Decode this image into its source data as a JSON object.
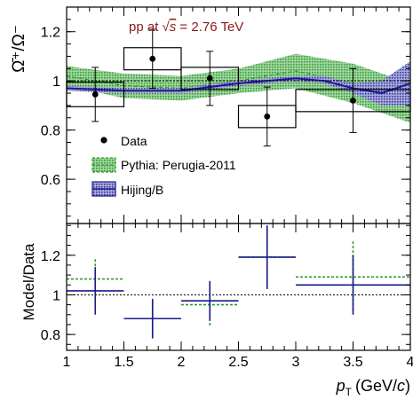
{
  "chart_data": [
    {
      "type": "scatter",
      "annotation": "pp at √s = 2.76 TeV",
      "annotation_prefix": "pp at ",
      "annotation_sqrt": "√",
      "annotation_s": "s",
      "annotation_suffix": " = 2.76 TeV",
      "ylabel": "Ω̄⁺/Ω⁻",
      "ylim": [
        0.42,
        1.3
      ],
      "xlim": [
        1,
        4
      ],
      "yticks": [
        "0.6",
        "0.8",
        "1",
        "1.2"
      ],
      "yticks_values": [
        0.6,
        0.8,
        1.0,
        1.2
      ],
      "reference_line": 1.0,
      "legend": [
        {
          "label": "Data",
          "kind": "marker"
        },
        {
          "label": "Pythia: Perugia-2011",
          "kind": "band",
          "color": "#2e9a2e"
        },
        {
          "label": "Hijing/B",
          "kind": "band",
          "color": "#1a1a8c"
        }
      ],
      "data": {
        "name": "Data",
        "x": [
          1.25,
          1.75,
          2.25,
          2.75,
          3.5
        ],
        "x_bins": [
          [
            1,
            1.5
          ],
          [
            1.5,
            2
          ],
          [
            2,
            2.5
          ],
          [
            2.5,
            3
          ],
          [
            3,
            4
          ]
        ],
        "y": [
          0.945,
          1.09,
          1.01,
          0.855,
          0.92
        ],
        "stat_err": [
          0.11,
          0.12,
          0.11,
          0.12,
          0.13
        ],
        "syst_err": [
          0.05,
          0.045,
          0.045,
          0.045,
          0.045
        ]
      },
      "pythia": {
        "name": "Pythia: Perugia-2011",
        "x": [
          1,
          1.5,
          2,
          2.5,
          3,
          3.5,
          4
        ],
        "y": [
          1.02,
          0.98,
          0.97,
          1.0,
          1.04,
          0.99,
          0.91
        ],
        "lo": [
          0.98,
          0.93,
          0.92,
          0.95,
          0.97,
          0.91,
          0.83
        ],
        "hi": [
          1.06,
          1.03,
          1.02,
          1.05,
          1.11,
          1.07,
          0.99
        ]
      },
      "hijing": {
        "name": "Hijing/B",
        "x": [
          1,
          1.5,
          2,
          2.5,
          3,
          3.25,
          3.5,
          3.75,
          4
        ],
        "y": [
          0.97,
          0.96,
          0.96,
          0.99,
          1.01,
          1.0,
          0.97,
          0.95,
          0.99
        ],
        "lo": [
          0.96,
          0.95,
          0.95,
          0.98,
          1.0,
          0.99,
          0.95,
          0.9,
          0.9
        ],
        "hi": [
          0.98,
          0.97,
          0.97,
          1.0,
          1.02,
          1.02,
          0.99,
          1.0,
          1.08
        ]
      }
    },
    {
      "type": "scatter",
      "ylabel": "Model/Data",
      "xlabel": "p_T (GeV/c)",
      "xlabel_p": "p",
      "xlabel_sub": "T",
      "xlabel_units": "(GeV/",
      "xlabel_c": "c",
      "xlabel_close": ")",
      "ylim": [
        0.72,
        1.36
      ],
      "xlim": [
        1,
        4
      ],
      "yticks": [
        "0.8",
        "1",
        "1.2"
      ],
      "yticks_values": [
        0.8,
        1.0,
        1.2
      ],
      "xticks": [
        "1",
        "1.5",
        "2",
        "2.5",
        "3",
        "3.5",
        "4"
      ],
      "xticks_values": [
        1,
        1.5,
        2,
        2.5,
        3,
        3.5,
        4
      ],
      "reference_line": 1.0,
      "series": [
        {
          "name": "Pythia: Perugia-2011",
          "color": "#2e9a2e",
          "x_bins": [
            [
              1,
              1.5
            ],
            [
              1.5,
              2
            ],
            [
              2,
              2.5
            ],
            [
              2.5,
              3
            ],
            [
              3,
              4
            ]
          ],
          "x": [
            1.25,
            1.75,
            2.25,
            2.75,
            3.5
          ],
          "y": [
            1.08,
            0.88,
            0.95,
            1.19,
            1.09
          ],
          "err": [
            0.1,
            0.09,
            0.11,
            0.16,
            0.18
          ]
        },
        {
          "name": "Hijing/B",
          "color": "#1a1a8c",
          "x_bins": [
            [
              1,
              1.5
            ],
            [
              1.5,
              2
            ],
            [
              2,
              2.5
            ],
            [
              2.5,
              3
            ],
            [
              3,
              4
            ]
          ],
          "x": [
            1.25,
            1.75,
            2.25,
            2.75,
            3.5
          ],
          "y": [
            1.02,
            0.88,
            0.97,
            1.19,
            1.05
          ],
          "err": [
            0.12,
            0.1,
            0.1,
            0.16,
            0.15
          ]
        }
      ]
    }
  ]
}
